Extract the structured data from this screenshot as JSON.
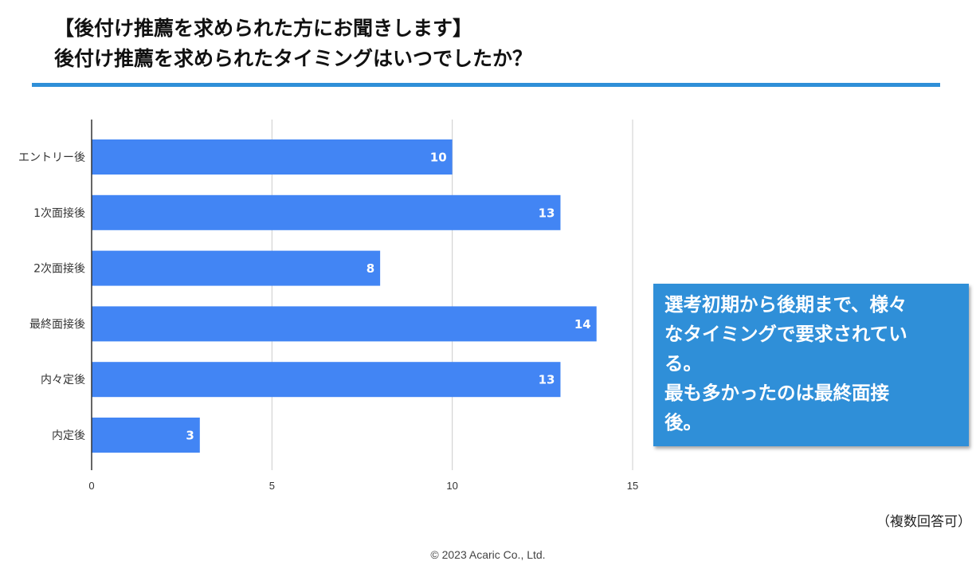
{
  "header": {
    "title_line1": "【後付け推薦を求められた方にお聞きします】",
    "title_line2": "後付け推薦を求められたタイミングはいつでしたか？"
  },
  "colors": {
    "accent": "#2f8fd8",
    "bar": "#4285f4"
  },
  "chart_data": {
    "type": "bar",
    "orientation": "horizontal",
    "title": "後付け推薦を求められたタイミングはいつでしたか？",
    "categories": [
      "エントリー後",
      "1次面接後",
      "2次面接後",
      "最終面接後",
      "内々定後",
      "内定後"
    ],
    "values": [
      10,
      13,
      8,
      14,
      13,
      3
    ],
    "xlim": [
      0,
      15
    ],
    "xticks": [
      0,
      5,
      10,
      15
    ],
    "grid": true,
    "xlabel": "",
    "ylabel": ""
  },
  "callout": {
    "lines": [
      "選考初期から後期まで、様々",
      "なタイミングで要求されてい",
      "る。",
      "最も多かったのは最終面接",
      "後。"
    ]
  },
  "footer": {
    "note": "（複数回答可）",
    "copyright": "© 2023 Acaric Co., Ltd."
  }
}
